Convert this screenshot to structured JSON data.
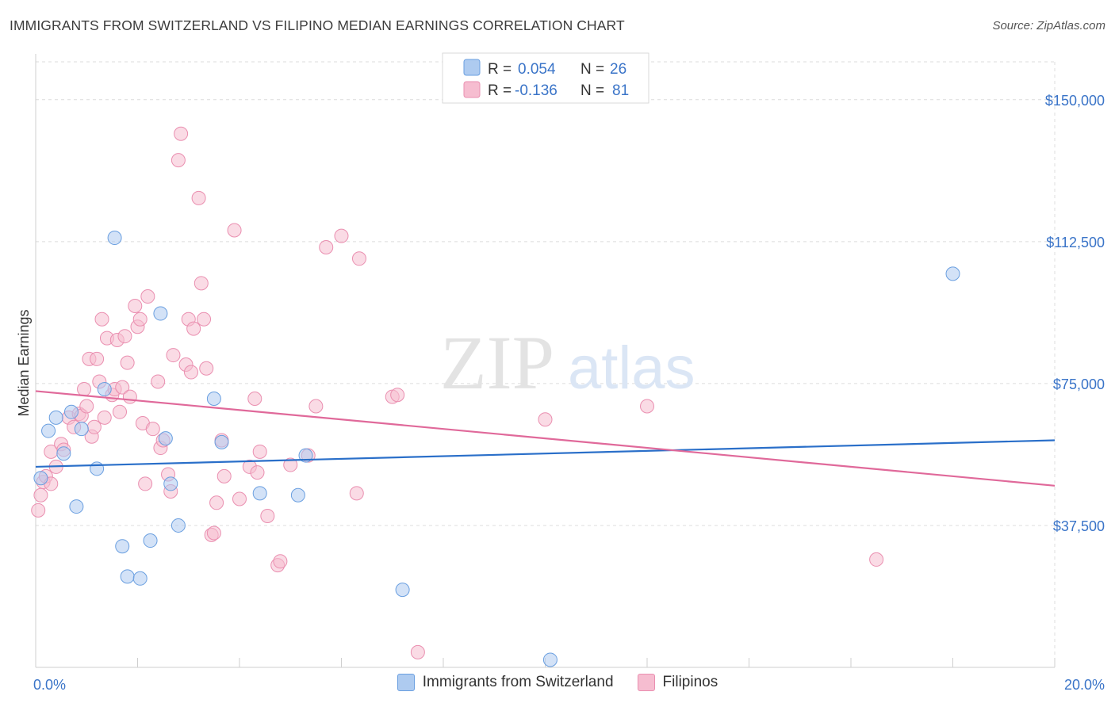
{
  "header": {
    "title": "IMMIGRANTS FROM SWITZERLAND VS FILIPINO MEDIAN EARNINGS CORRELATION CHART",
    "source": "Source: ZipAtlas.com"
  },
  "watermark": {
    "zip": "ZIP",
    "atlas": "atlas"
  },
  "colors": {
    "blue_fill": "#aecbf0",
    "blue_stroke": "#6a9fe0",
    "blue_line": "#2a6fc9",
    "pink_fill": "#f6bdd0",
    "pink_stroke": "#ea8fb0",
    "pink_line": "#e0699a",
    "tick_label": "#3a74c8",
    "grid": "#dcdcdc"
  },
  "legend_top": {
    "rows": [
      {
        "r_label": "R = ",
        "r_value": "0.054",
        "n_label": "N = ",
        "n_value": "26"
      },
      {
        "r_label": "R = ",
        "r_value": "-0.136",
        "n_label": "N = ",
        "n_value": "81"
      }
    ]
  },
  "chart_data": {
    "type": "scatter",
    "title": "IMMIGRANTS FROM SWITZERLAND VS FILIPINO MEDIAN EARNINGS CORRELATION CHART",
    "xlabel": "",
    "ylabel": "Median Earnings",
    "xlim": [
      0,
      20
    ],
    "ylim": [
      0,
      160000
    ],
    "x_tick_labels": [
      "0.0%",
      "20.0%"
    ],
    "y_ticks": [
      37500,
      75000,
      112500,
      150000
    ],
    "y_tick_labels": [
      "$37,500",
      "$75,000",
      "$112,500",
      "$150,000"
    ],
    "grid": true,
    "legend_position": "top-center",
    "series": [
      {
        "name": "Immigrants from Switzerland",
        "color": "#aecbf0",
        "R": 0.054,
        "N": 26,
        "trend": {
          "x": [
            0,
            20
          ],
          "y": [
            53000,
            60000
          ]
        },
        "points": [
          [
            0.1,
            50000
          ],
          [
            0.25,
            62500
          ],
          [
            0.4,
            66000
          ],
          [
            0.55,
            56500
          ],
          [
            0.7,
            67500
          ],
          [
            0.8,
            42500
          ],
          [
            0.9,
            63000
          ],
          [
            1.2,
            52500
          ],
          [
            1.35,
            73500
          ],
          [
            1.55,
            113500
          ],
          [
            1.7,
            32000
          ],
          [
            1.8,
            24000
          ],
          [
            2.05,
            23500
          ],
          [
            2.25,
            33500
          ],
          [
            2.45,
            93500
          ],
          [
            2.55,
            60500
          ],
          [
            2.65,
            48500
          ],
          [
            2.8,
            37500
          ],
          [
            3.5,
            71000
          ],
          [
            3.65,
            59500
          ],
          [
            4.4,
            46000
          ],
          [
            5.15,
            45500
          ],
          [
            5.3,
            56000
          ],
          [
            7.2,
            20500
          ],
          [
            10.1,
            2000
          ],
          [
            18.0,
            104000
          ]
        ]
      },
      {
        "name": "Filipinos",
        "color": "#f6bdd0",
        "R": -0.136,
        "N": 81,
        "trend": {
          "x": [
            0,
            20
          ],
          "y": [
            73000,
            48000
          ]
        },
        "points": [
          [
            0.05,
            41500
          ],
          [
            0.1,
            45500
          ],
          [
            0.15,
            49000
          ],
          [
            0.2,
            50500
          ],
          [
            0.3,
            57000
          ],
          [
            0.4,
            53000
          ],
          [
            0.5,
            59000
          ],
          [
            0.55,
            57500
          ],
          [
            0.65,
            66000
          ],
          [
            0.75,
            63500
          ],
          [
            0.85,
            67000
          ],
          [
            0.9,
            66500
          ],
          [
            0.95,
            73500
          ],
          [
            1.0,
            69000
          ],
          [
            1.05,
            81500
          ],
          [
            1.1,
            61000
          ],
          [
            1.15,
            63500
          ],
          [
            1.2,
            81500
          ],
          [
            1.25,
            75500
          ],
          [
            1.3,
            92000
          ],
          [
            1.35,
            66000
          ],
          [
            1.4,
            87000
          ],
          [
            1.5,
            72000
          ],
          [
            1.55,
            73500
          ],
          [
            1.6,
            86500
          ],
          [
            1.65,
            67500
          ],
          [
            1.7,
            74000
          ],
          [
            1.75,
            87500
          ],
          [
            1.8,
            80500
          ],
          [
            1.85,
            71500
          ],
          [
            1.95,
            95500
          ],
          [
            2.0,
            90000
          ],
          [
            2.05,
            92000
          ],
          [
            2.1,
            64500
          ],
          [
            2.15,
            48500
          ],
          [
            2.2,
            98000
          ],
          [
            2.3,
            63000
          ],
          [
            2.4,
            75500
          ],
          [
            2.45,
            58000
          ],
          [
            2.5,
            60000
          ],
          [
            2.6,
            51000
          ],
          [
            2.65,
            46500
          ],
          [
            2.7,
            82500
          ],
          [
            2.8,
            134000
          ],
          [
            2.85,
            141000
          ],
          [
            2.95,
            80000
          ],
          [
            3.0,
            92000
          ],
          [
            3.05,
            78000
          ],
          [
            3.1,
            89500
          ],
          [
            3.2,
            124000
          ],
          [
            3.25,
            101500
          ],
          [
            3.3,
            92000
          ],
          [
            3.35,
            79000
          ],
          [
            3.45,
            35000
          ],
          [
            3.5,
            35500
          ],
          [
            3.55,
            43500
          ],
          [
            3.65,
            60000
          ],
          [
            3.7,
            50500
          ],
          [
            3.9,
            115500
          ],
          [
            4.0,
            44500
          ],
          [
            4.2,
            53000
          ],
          [
            4.3,
            71000
          ],
          [
            4.35,
            51500
          ],
          [
            4.4,
            57000
          ],
          [
            4.55,
            40000
          ],
          [
            4.75,
            27000
          ],
          [
            4.8,
            28000
          ],
          [
            5.0,
            53500
          ],
          [
            5.35,
            56000
          ],
          [
            5.5,
            69000
          ],
          [
            5.7,
            111000
          ],
          [
            6.0,
            114000
          ],
          [
            6.3,
            46000
          ],
          [
            6.35,
            108000
          ],
          [
            7.0,
            71500
          ],
          [
            7.1,
            72000
          ],
          [
            7.5,
            4000
          ],
          [
            10.0,
            65500
          ],
          [
            12.0,
            69000
          ],
          [
            16.5,
            28500
          ],
          [
            0.3,
            48500
          ]
        ]
      }
    ]
  }
}
